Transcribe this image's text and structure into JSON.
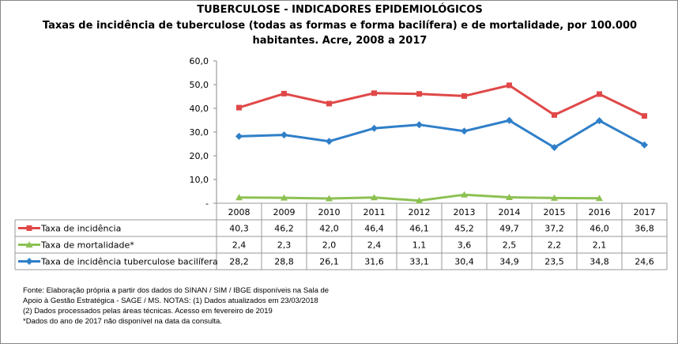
{
  "title": "TUBERCULOSE - INDICADORES EPIDEMIOLÓGICOS",
  "subtitle_line1": "Taxas de incidência de tuberculose (todas as formas e forma bacilífera) e de mortalidade,  por 100.000",
  "subtitle_line2": "habitantes. Acre, 2008 a 2017",
  "notes": [
    "Fonte: Elaboração própria a partir dos dados do SINAN / SIM / IBGE  disponíveis na Sala de",
    "Apoio  à Gestão Estratégica - SAGE / MS. NOTAS: (1) Dados atualizados em 23/03/2018",
    "(2) Dados processados pelas áreas técnicas. Acesso em fevereiro de 2019",
    "*Dados do ano de 2017 não disponível na data da consulta."
  ],
  "chart_data": {
    "type": "line",
    "categories": [
      "2008",
      "2009",
      "2010",
      "2011",
      "2012",
      "2013",
      "2014",
      "2015",
      "2016",
      "2017"
    ],
    "ylim": [
      0,
      60
    ],
    "yticks": [
      "-",
      "10,0",
      "20,0",
      "30,0",
      "40,0",
      "50,0",
      "60,0"
    ],
    "grid": false,
    "legend": "data-table",
    "series": [
      {
        "name": "Taxa de incidência",
        "color": "#e04848",
        "marker": "square",
        "values": [
          40.3,
          46.2,
          42.0,
          46.4,
          46.1,
          45.2,
          49.7,
          37.2,
          46.0,
          36.8
        ],
        "labels": [
          "40,3",
          "46,2",
          "42,0",
          "46,4",
          "46,1",
          "45,2",
          "49,7",
          "37,2",
          "46,0",
          "36,8"
        ]
      },
      {
        "name": "Taxa de mortalidade*",
        "color": "#8cc152",
        "marker": "triangle",
        "values": [
          2.4,
          2.3,
          2.0,
          2.4,
          1.1,
          3.6,
          2.5,
          2.2,
          2.1,
          null
        ],
        "labels": [
          "2,4",
          "2,3",
          "2,0",
          "2,4",
          "1,1",
          "3,6",
          "2,5",
          "2,2",
          "2,1",
          ""
        ]
      },
      {
        "name": "Taxa de incidência tuberculose bacilífera",
        "color": "#2f7fc8",
        "marker": "diamond",
        "values": [
          28.2,
          28.8,
          26.1,
          31.6,
          33.1,
          30.4,
          34.9,
          23.5,
          34.8,
          24.6
        ],
        "labels": [
          "28,2",
          "28,8",
          "26,1",
          "31,6",
          "33,1",
          "30,4",
          "34,9",
          "23,5",
          "34,8",
          "24,6"
        ]
      }
    ]
  }
}
